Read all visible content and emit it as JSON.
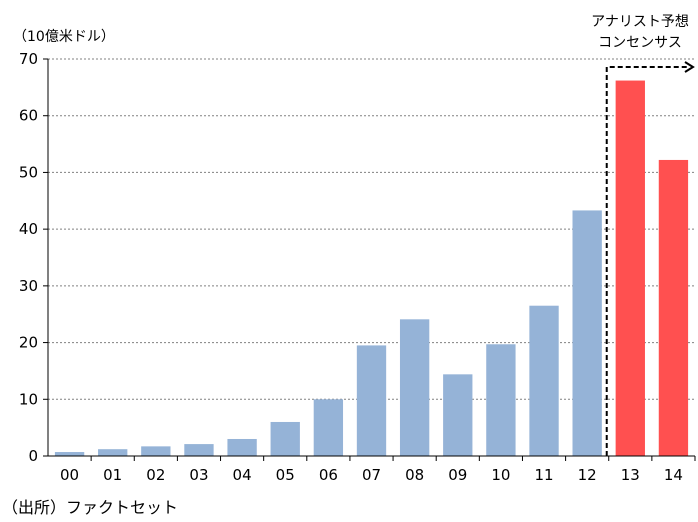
{
  "chart_data": {
    "type": "bar",
    "unit_label": "（10億米ドル）",
    "source": "（出所）ファクトセット",
    "annotation": {
      "line1": "アナリスト予想",
      "line2": "コンセンサス"
    },
    "categories": [
      "00",
      "01",
      "02",
      "03",
      "04",
      "05",
      "06",
      "07",
      "08",
      "09",
      "10",
      "11",
      "12",
      "13",
      "14"
    ],
    "values": [
      0.7,
      1.2,
      1.7,
      2.1,
      3.0,
      6.0,
      10.0,
      19.5,
      24.1,
      14.4,
      19.7,
      26.5,
      43.3,
      66.2,
      52.2
    ],
    "forecast_from_index": 13,
    "colors": {
      "actual": "#95B3D7",
      "forecast": "#FF5050",
      "grid": "#808080",
      "axis": "#000000"
    },
    "ylim": [
      0,
      70
    ],
    "yticks": [
      0,
      10,
      20,
      30,
      40,
      50,
      60,
      70
    ],
    "grid": true
  }
}
